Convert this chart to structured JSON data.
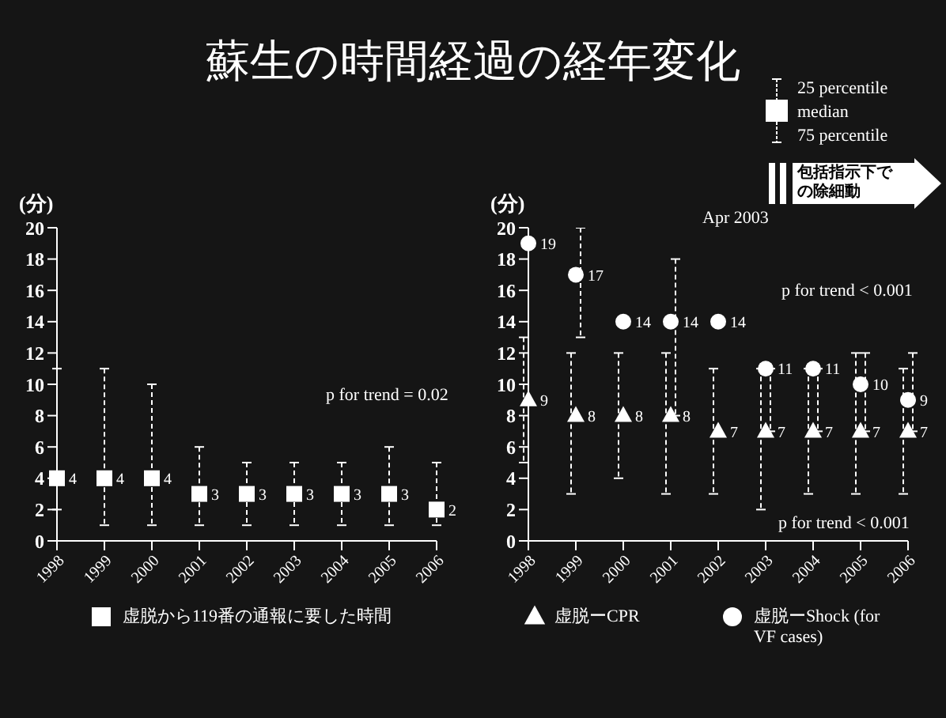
{
  "chart_data": [
    {
      "type": "scatter",
      "title": "蘇生の時間経過の経年変化",
      "ylabel": "(分)",
      "categories": [
        "1998",
        "1999",
        "2000",
        "2001",
        "2002",
        "2003",
        "2004",
        "2005",
        "2006"
      ],
      "ylim": [
        0,
        20
      ],
      "yticks": [
        0,
        2,
        4,
        6,
        8,
        10,
        12,
        14,
        16,
        18,
        20
      ],
      "data_labels": true,
      "legend": "bottom",
      "annotations": [
        "p for trend = 0.02"
      ],
      "series": [
        {
          "name": "虚脱から119番の通報に要した時間",
          "color": "#ffffff",
          "marker": "square",
          "values": [
            4,
            4,
            4,
            3,
            3,
            3,
            3,
            3,
            2
          ],
          "errors": [
            [
              2,
              11
            ],
            [
              1,
              11
            ],
            [
              1,
              10
            ],
            [
              1,
              6
            ],
            [
              1,
              5
            ],
            [
              1,
              5
            ],
            [
              1,
              5
            ],
            [
              1,
              6
            ],
            [
              1,
              5
            ]
          ]
        }
      ]
    },
    {
      "type": "scatter",
      "ylabel": "(分)",
      "categories": [
        "1998",
        "1999",
        "2000",
        "2001",
        "2002",
        "2003",
        "2004",
        "2005",
        "2006"
      ],
      "ylim": [
        0,
        20
      ],
      "yticks": [
        0,
        2,
        4,
        6,
        8,
        10,
        12,
        14,
        16,
        18,
        20
      ],
      "data_labels": true,
      "legend": "bottom",
      "annotations": [
        "25 percentile",
        "median",
        "75 percentile",
        "Apr 2003",
        "包括指示下での除細動",
        "p for trend < 0.001",
        "p for trend < 0.001"
      ],
      "series": [
        {
          "name": "虚脱ーCPR",
          "color": "#ffffff",
          "marker": "triangle",
          "values": [
            9,
            8,
            8,
            8,
            7,
            7,
            7,
            7,
            7
          ],
          "errors": [
            [
              5,
              13
            ],
            [
              3,
              12
            ],
            [
              4,
              12
            ],
            [
              3,
              12
            ],
            [
              3,
              11
            ],
            [
              2,
              11
            ],
            [
              3,
              11
            ],
            [
              3,
              12
            ],
            [
              3,
              11
            ]
          ]
        },
        {
          "name": "虚脱ーShock (for VF cases)",
          "color": "#ffffff",
          "marker": "circle",
          "values": [
            19,
            17,
            14,
            14,
            14,
            11,
            11,
            10,
            9
          ],
          "errors": [
            null,
            [
              13,
              20
            ],
            null,
            [
              8,
              18
            ],
            null,
            [
              7,
              11
            ],
            [
              7,
              11
            ],
            [
              7,
              12
            ],
            [
              7,
              12
            ]
          ]
        }
      ]
    }
  ]
}
